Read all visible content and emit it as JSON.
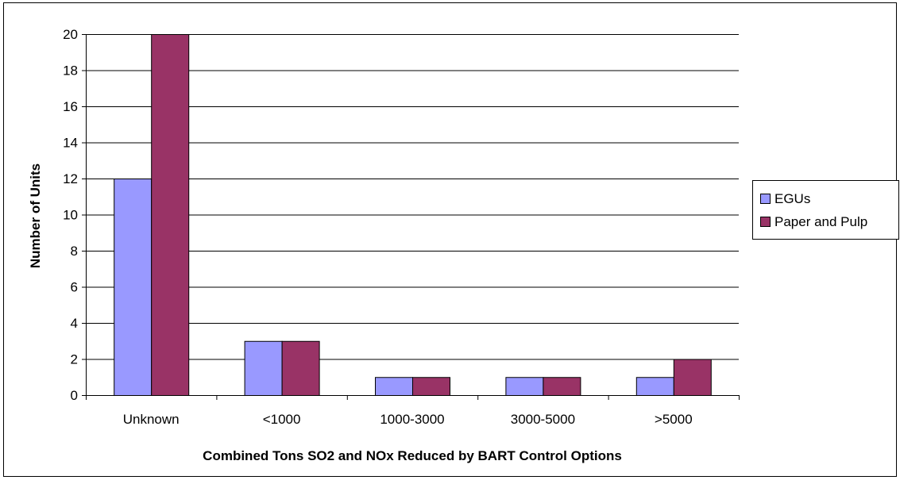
{
  "chart_data": {
    "type": "bar",
    "title": "",
    "xlabel": "Combined Tons SO2 and NOx Reduced by BART Control Options",
    "ylabel": "Number of Units",
    "categories": [
      "Unknown",
      "<1000",
      "1000-3000",
      "3000-5000",
      ">5000"
    ],
    "series": [
      {
        "name": "EGUs",
        "values": [
          12,
          3,
          1,
          1,
          1
        ],
        "color": "#9999ff"
      },
      {
        "name": "Paper and Pulp",
        "values": [
          20,
          3,
          1,
          1,
          2
        ],
        "color": "#993366"
      }
    ],
    "ylim": [
      0,
      20
    ],
    "yticks": [
      0,
      2,
      4,
      6,
      8,
      10,
      12,
      14,
      16,
      18,
      20
    ],
    "grid": true,
    "legend_position": "right"
  }
}
